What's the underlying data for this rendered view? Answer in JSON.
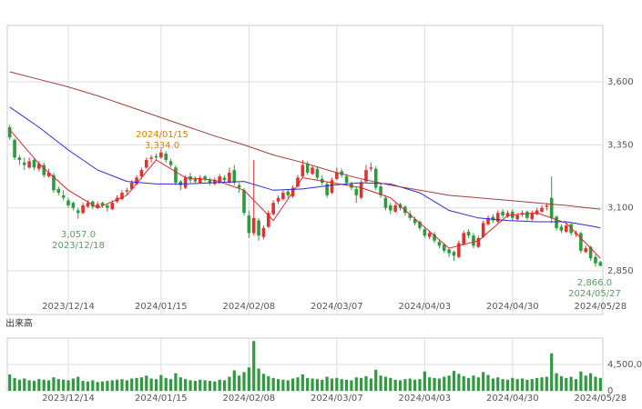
{
  "chart_data": [
    {
      "type": "candlestick",
      "xlim": [
        -0.5,
        121.5
      ],
      "xticks": [
        {
          "value": 12,
          "label": "2023/12/14"
        },
        {
          "value": 31,
          "label": "2024/01/15"
        },
        {
          "value": 49,
          "label": "2024/02/08"
        },
        {
          "value": 67,
          "label": "2024/03/07"
        },
        {
          "value": 85,
          "label": "2024/04/03"
        },
        {
          "value": 103,
          "label": "2024/04/30"
        },
        {
          "value": 121,
          "label": "2024/05/28"
        }
      ],
      "ylim": [
        2677,
        3824
      ],
      "yticks": [
        {
          "value": 2850,
          "label": "2,850"
        },
        {
          "value": 3100,
          "label": "3,100"
        },
        {
          "value": 3350,
          "label": "3,350"
        },
        {
          "value": 3600,
          "label": "3,600"
        }
      ],
      "grid": true,
      "up_color": "#e0332f",
      "down_color": "#2f9a3f",
      "ohlc": [
        [
          3420,
          3430,
          3370,
          3380
        ],
        [
          3370,
          3375,
          3290,
          3300
        ],
        [
          3300,
          3310,
          3270,
          3290
        ],
        [
          3280,
          3300,
          3250,
          3270
        ],
        [
          3260,
          3300,
          3255,
          3285
        ],
        [
          3290,
          3295,
          3250,
          3260
        ],
        [
          3255,
          3285,
          3245,
          3275
        ],
        [
          3270,
          3280,
          3220,
          3230
        ],
        [
          3225,
          3255,
          3220,
          3240
        ],
        [
          3230,
          3240,
          3160,
          3170
        ],
        [
          3175,
          3185,
          3150,
          3160
        ],
        [
          3150,
          3170,
          3130,
          3140
        ],
        [
          3130,
          3140,
          3100,
          3110
        ],
        [
          3120,
          3125,
          3090,
          3100
        ],
        [
          3090,
          3100,
          3057,
          3080
        ],
        [
          3080,
          3120,
          3075,
          3110
        ],
        [
          3105,
          3130,
          3100,
          3120
        ],
        [
          3125,
          3130,
          3095,
          3105
        ],
        [
          3100,
          3125,
          3095,
          3115
        ],
        [
          3120,
          3125,
          3100,
          3110
        ],
        [
          3110,
          3115,
          3085,
          3100
        ],
        [
          3095,
          3130,
          3090,
          3120
        ],
        [
          3125,
          3150,
          3120,
          3140
        ],
        [
          3135,
          3170,
          3130,
          3160
        ],
        [
          3165,
          3180,
          3150,
          3170
        ],
        [
          3175,
          3210,
          3170,
          3200
        ],
        [
          3195,
          3230,
          3190,
          3220
        ],
        [
          3225,
          3260,
          3215,
          3250
        ],
        [
          3260,
          3300,
          3255,
          3290
        ],
        [
          3295,
          3310,
          3280,
          3300
        ],
        [
          3305,
          3315,
          3290,
          3300
        ],
        [
          3300,
          3334,
          3295,
          3320
        ],
        [
          3315,
          3325,
          3280,
          3290
        ],
        [
          3285,
          3295,
          3260,
          3270
        ],
        [
          3260,
          3270,
          3190,
          3200
        ],
        [
          3205,
          3210,
          3170,
          3190
        ],
        [
          3180,
          3230,
          3175,
          3220
        ],
        [
          3225,
          3240,
          3200,
          3210
        ],
        [
          3215,
          3225,
          3195,
          3205
        ],
        [
          3200,
          3230,
          3195,
          3220
        ],
        [
          3225,
          3230,
          3205,
          3215
        ],
        [
          3210,
          3220,
          3190,
          3200
        ],
        [
          3195,
          3220,
          3190,
          3210
        ],
        [
          3200,
          3235,
          3195,
          3225
        ],
        [
          3220,
          3230,
          3200,
          3210
        ],
        [
          3200,
          3260,
          3195,
          3240
        ],
        [
          3250,
          3270,
          3190,
          3200
        ],
        [
          3190,
          3200,
          3160,
          3180
        ],
        [
          3170,
          3180,
          3070,
          3080
        ],
        [
          3070,
          3090,
          2980,
          3000
        ],
        [
          3000,
          3290,
          2990,
          3060
        ],
        [
          3050,
          3060,
          2970,
          2990
        ],
        [
          2985,
          3030,
          2975,
          3020
        ],
        [
          3025,
          3090,
          3020,
          3080
        ],
        [
          3075,
          3130,
          3070,
          3120
        ],
        [
          3125,
          3150,
          3115,
          3140
        ],
        [
          3135,
          3170,
          3130,
          3160
        ],
        [
          3165,
          3175,
          3140,
          3150
        ],
        [
          3145,
          3190,
          3140,
          3180
        ],
        [
          3185,
          3230,
          3180,
          3220
        ],
        [
          3225,
          3290,
          3220,
          3270
        ],
        [
          3275,
          3285,
          3230,
          3240
        ],
        [
          3235,
          3270,
          3230,
          3260
        ],
        [
          3255,
          3265,
          3210,
          3220
        ],
        [
          3215,
          3230,
          3190,
          3200
        ],
        [
          3195,
          3205,
          3140,
          3150
        ],
        [
          3160,
          3220,
          3155,
          3210
        ],
        [
          3215,
          3260,
          3210,
          3240
        ],
        [
          3245,
          3255,
          3220,
          3230
        ],
        [
          3225,
          3235,
          3190,
          3200
        ],
        [
          3195,
          3205,
          3170,
          3180
        ],
        [
          3175,
          3185,
          3120,
          3150
        ],
        [
          3140,
          3210,
          3135,
          3200
        ],
        [
          3205,
          3270,
          3200,
          3250
        ],
        [
          3255,
          3280,
          3245,
          3260
        ],
        [
          3255,
          3265,
          3170,
          3180
        ],
        [
          3185,
          3195,
          3140,
          3150
        ],
        [
          3140,
          3150,
          3090,
          3100
        ],
        [
          3110,
          3120,
          3075,
          3090
        ],
        [
          3085,
          3120,
          3080,
          3110
        ],
        [
          3115,
          3120,
          3090,
          3100
        ],
        [
          3105,
          3110,
          3070,
          3080
        ],
        [
          3075,
          3090,
          3050,
          3060
        ],
        [
          3055,
          3065,
          3030,
          3040
        ],
        [
          3045,
          3050,
          3010,
          3020
        ],
        [
          3015,
          3025,
          2980,
          2990
        ],
        [
          2985,
          3010,
          2975,
          3000
        ],
        [
          2995,
          3005,
          2960,
          2970
        ],
        [
          2965,
          2975,
          2940,
          2950
        ],
        [
          2955,
          2960,
          2920,
          2930
        ],
        [
          2935,
          2940,
          2905,
          2920
        ],
        [
          2925,
          2930,
          2890,
          2910
        ],
        [
          2905,
          2970,
          2900,
          2960
        ],
        [
          2955,
          3010,
          2950,
          3000
        ],
        [
          3005,
          3015,
          2980,
          2990
        ],
        [
          2990,
          3000,
          2940,
          2950
        ],
        [
          2945,
          2990,
          2940,
          2980
        ],
        [
          2985,
          3050,
          2980,
          3040
        ],
        [
          3035,
          3070,
          3030,
          3060
        ],
        [
          3065,
          3075,
          3040,
          3050
        ],
        [
          3045,
          3090,
          3040,
          3080
        ],
        [
          3085,
          3095,
          3060,
          3070
        ],
        [
          3065,
          3090,
          3060,
          3080
        ],
        [
          3085,
          3095,
          3050,
          3060
        ],
        [
          3055,
          3080,
          3050,
          3070
        ],
        [
          3075,
          3090,
          3065,
          3080
        ],
        [
          3085,
          3090,
          3050,
          3060
        ],
        [
          3055,
          3090,
          3050,
          3080
        ],
        [
          3075,
          3100,
          3070,
          3090
        ],
        [
          3085,
          3110,
          3080,
          3100
        ],
        [
          3105,
          3120,
          3090,
          3110
        ],
        [
          3140,
          3225,
          3040,
          3060
        ],
        [
          3065,
          3070,
          3010,
          3020
        ],
        [
          3025,
          3035,
          3000,
          3010
        ],
        [
          3005,
          3040,
          3000,
          3030
        ],
        [
          3035,
          3040,
          2990,
          3000
        ],
        [
          2995,
          3010,
          2985,
          3000
        ],
        [
          3000,
          3005,
          2920,
          2930
        ],
        [
          2925,
          2950,
          2920,
          2940
        ],
        [
          2945,
          2950,
          2890,
          2900
        ],
        [
          2905,
          2915,
          2866,
          2880
        ],
        [
          2885,
          2890,
          2868,
          2870
        ]
      ],
      "series": [
        {
          "color": "#d9262b",
          "x": [
            0,
            6,
            12,
            18,
            24,
            30,
            36,
            42,
            48,
            54,
            60,
            66,
            72,
            78,
            84,
            90,
            96,
            102,
            108,
            114,
            120,
            121
          ],
          "values": [
            3410,
            3275,
            3170,
            3100,
            3150,
            3290,
            3220,
            3210,
            3170,
            3050,
            3220,
            3200,
            3180,
            3140,
            3040,
            2940,
            2970,
            3070,
            3080,
            3040,
            2920,
            2900
          ]
        },
        {
          "color": "#2b2bd9",
          "x": [
            0,
            6,
            12,
            18,
            24,
            30,
            36,
            42,
            48,
            54,
            60,
            66,
            72,
            78,
            84,
            90,
            96,
            102,
            108,
            114,
            120,
            121
          ],
          "values": [
            3500,
            3420,
            3330,
            3250,
            3205,
            3195,
            3195,
            3200,
            3205,
            3170,
            3175,
            3190,
            3200,
            3195,
            3160,
            3090,
            3060,
            3050,
            3045,
            3045,
            3025,
            3020
          ]
        },
        {
          "color": "#a0403a",
          "x": [
            0,
            6,
            12,
            18,
            24,
            30,
            36,
            42,
            48,
            54,
            60,
            66,
            72,
            78,
            84,
            90,
            96,
            102,
            108,
            114,
            120,
            121
          ],
          "values": [
            3640,
            3610,
            3580,
            3545,
            3505,
            3465,
            3425,
            3385,
            3350,
            3310,
            3280,
            3245,
            3215,
            3190,
            3170,
            3150,
            3140,
            3130,
            3120,
            3110,
            3097,
            3095
          ]
        }
      ],
      "annotations": [
        {
          "lines": [
            "2024/01/15",
            "3,334.0"
          ],
          "color": "#d4800a"
        },
        {
          "lines": [
            "3,057.0",
            "2023/12/18"
          ],
          "color": "#5a9a6a"
        },
        {
          "lines": [
            "2,866.0",
            "2024/05/27"
          ],
          "color": "#5a9a6a"
        }
      ]
    },
    {
      "type": "bar",
      "title": "出来高",
      "color": "#2f9a3f",
      "xlim": [
        -0.5,
        121.5
      ],
      "xticks": [
        {
          "value": 12,
          "label": "2023/12/14"
        },
        {
          "value": 31,
          "label": "2024/01/15"
        },
        {
          "value": 49,
          "label": "2024/02/08"
        },
        {
          "value": 67,
          "label": "2024/03/07"
        },
        {
          "value": 85,
          "label": "2024/04/03"
        },
        {
          "value": 103,
          "label": "2024/04/30"
        },
        {
          "value": 121,
          "label": "2024/05/28"
        }
      ],
      "ylim": [
        0,
        9000000
      ],
      "yticks": [
        0,
        {
          "value": 4500000,
          "label": "4,500,000"
        }
      ],
      "values": [
        2800000,
        2200000,
        1900000,
        2100000,
        1800000,
        1700000,
        2000000,
        1900000,
        1800000,
        2300000,
        2000000,
        1900000,
        1800000,
        2100000,
        2400000,
        1700000,
        1600000,
        1800000,
        1500000,
        1600000,
        1700000,
        1800000,
        1900000,
        2000000,
        1800000,
        2100000,
        2200000,
        2300000,
        2600000,
        2100000,
        2000000,
        2700000,
        2200000,
        2000000,
        3000000,
        2300000,
        2000000,
        1800000,
        1700000,
        1900000,
        1800000,
        1700000,
        1600000,
        1900000,
        1800000,
        2400000,
        3500000,
        2600000,
        3200000,
        4000000,
        8500000,
        3800000,
        2900000,
        2500000,
        2200000,
        2000000,
        1900000,
        1800000,
        2100000,
        2300000,
        2800000,
        2200000,
        2100000,
        2000000,
        1900000,
        2400000,
        2100000,
        2200000,
        2000000,
        1900000,
        1800000,
        2300000,
        2200000,
        2500000,
        2100000,
        3600000,
        2600000,
        2400000,
        2200000,
        1900000,
        1800000,
        2000000,
        2100000,
        1900000,
        2000000,
        3300000,
        2300000,
        2200000,
        2100000,
        2400000,
        2600000,
        3400000,
        2900000,
        2500000,
        2200000,
        2600000,
        2300000,
        3200000,
        2700000,
        2100000,
        2300000,
        2000000,
        1900000,
        2200000,
        2000000,
        2100000,
        1900000,
        2000000,
        2200000,
        2300000,
        2400000,
        6400000,
        3000000,
        2500000,
        2200000,
        2400000,
        2000000,
        3300000,
        2600000,
        3000000,
        2400000,
        2200000
      ]
    }
  ]
}
